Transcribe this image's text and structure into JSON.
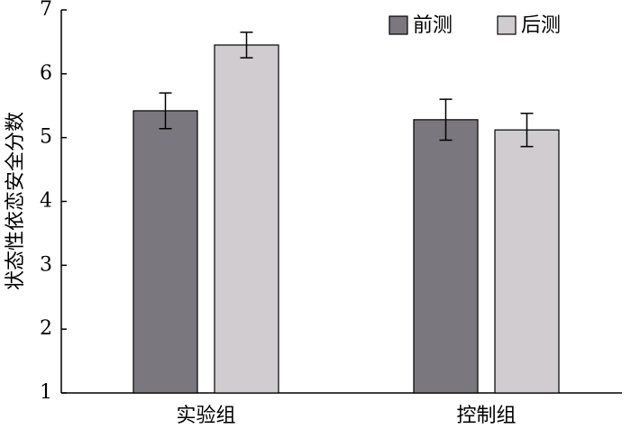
{
  "chart_data": {
    "type": "bar",
    "y_label": "状态性依恋安全分数",
    "categories": [
      "实验组",
      "控制组"
    ],
    "series": [
      {
        "name": "前测",
        "color": "#7a787e",
        "values": [
          5.42,
          5.28
        ],
        "errors": [
          0.28,
          0.32
        ]
      },
      {
        "name": "后测",
        "color": "#d0ccd0",
        "values": [
          6.45,
          5.12
        ],
        "errors": [
          0.2,
          0.26
        ]
      }
    ],
    "ylim": [
      1,
      7
    ],
    "yticks": [
      1,
      2,
      3,
      4,
      5,
      6,
      7
    ],
    "legend": "upper right"
  }
}
